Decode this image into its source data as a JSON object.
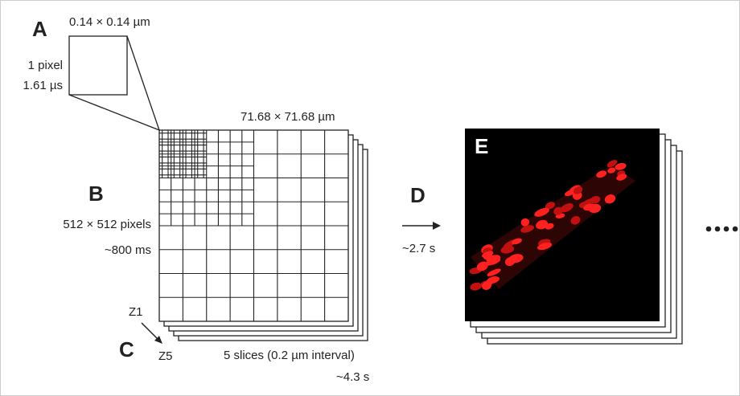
{
  "panel_a": {
    "label": "A",
    "size": "0.14 × 0.14 µm",
    "unit": "1 pixel",
    "time": "1.61 µs"
  },
  "panel_b": {
    "label": "B",
    "size": "71.68 × 71.68 µm",
    "pixels": "512 × 512 pixels",
    "time": "~800 ms"
  },
  "panel_c": {
    "label": "C",
    "z_start": "Z1",
    "z_end": "Z5",
    "slices": "5 slices (0.2 µm interval)",
    "time": "~4.3 s"
  },
  "panel_d": {
    "label": "D",
    "time": "~2.7 s"
  },
  "panel_e": {
    "label": "E"
  }
}
